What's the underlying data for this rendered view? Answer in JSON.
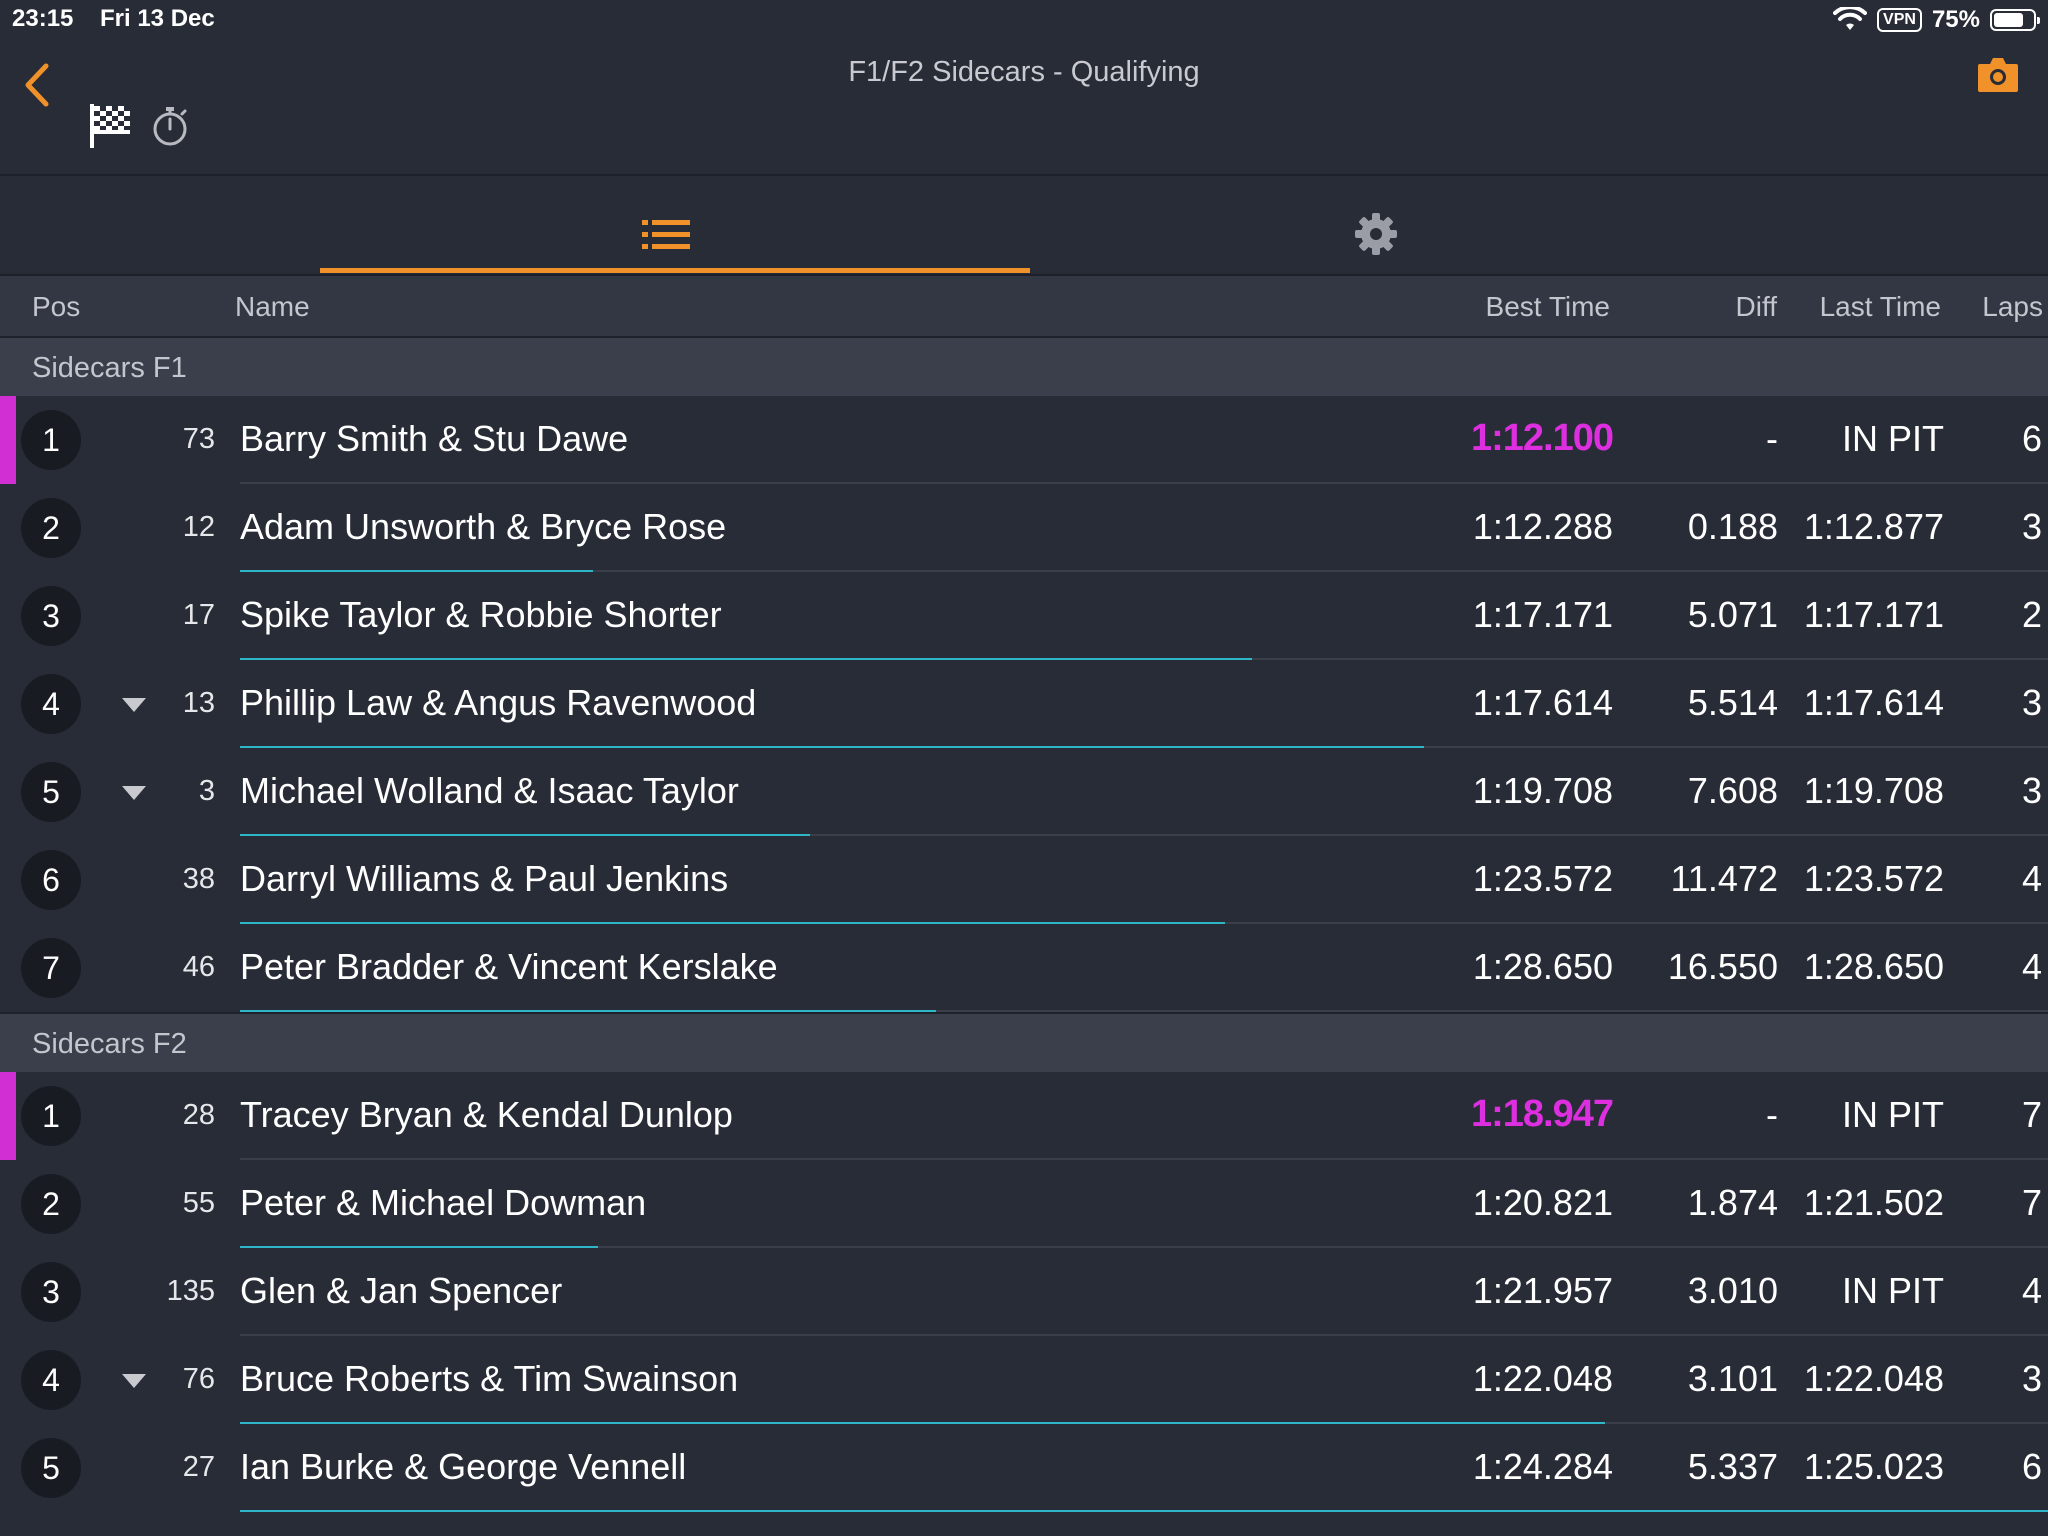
{
  "status_bar": {
    "time": "23:15",
    "date": "Fri 13 Dec",
    "vpn": "VPN",
    "battery": "75%",
    "battery_level": 0.75
  },
  "nav": {
    "title": "F1/F2 Sidecars - Qualifying",
    "back_icon": "chevron-left-icon",
    "camera_icon": "camera-icon",
    "flag_icon": "checkered-flag-icon",
    "stopwatch_icon": "stopwatch-icon"
  },
  "tabs": [
    {
      "name": "list",
      "icon": "list-icon",
      "active": true
    },
    {
      "name": "settings",
      "icon": "gear-icon",
      "active": false
    }
  ],
  "columns": {
    "pos": "Pos",
    "name": "Name",
    "best": "Best Time",
    "diff": "Diff",
    "last": "Last Time",
    "laps": "Laps"
  },
  "colors": {
    "accent": "#f0912a",
    "fastest": "#dd2fe0",
    "progress": "#2fb7c9",
    "background": "#282c36"
  },
  "groups": [
    {
      "title": "Sidecars F1",
      "rows": [
        {
          "pos": "1",
          "num": "73",
          "name": "Barry Smith & Stu Dawe",
          "best": "1:12.100",
          "diff": "-",
          "last": "IN PIT",
          "laps": "6",
          "fastest": true,
          "dropped": false,
          "progress": 0
        },
        {
          "pos": "2",
          "num": "12",
          "name": "Adam Unsworth & Bryce Rose",
          "best": "1:12.288",
          "diff": "0.188",
          "last": "1:12.877",
          "laps": "3",
          "fastest": false,
          "dropped": false,
          "progress": 0.195
        },
        {
          "pos": "3",
          "num": "17",
          "name": "Spike Taylor & Robbie Shorter",
          "best": "1:17.171",
          "diff": "5.071",
          "last": "1:17.171",
          "laps": "2",
          "fastest": false,
          "dropped": false,
          "progress": 0.56
        },
        {
          "pos": "4",
          "num": "13",
          "name": "Phillip Law & Angus Ravenwood",
          "best": "1:17.614",
          "diff": "5.514",
          "last": "1:17.614",
          "laps": "3",
          "fastest": false,
          "dropped": true,
          "progress": 0.655
        },
        {
          "pos": "5",
          "num": "3",
          "name": "Michael Wolland & Isaac Taylor",
          "best": "1:19.708",
          "diff": "7.608",
          "last": "1:19.708",
          "laps": "3",
          "fastest": false,
          "dropped": true,
          "progress": 0.315
        },
        {
          "pos": "6",
          "num": "38",
          "name": "Darryl Williams & Paul Jenkins",
          "best": "1:23.572",
          "diff": "11.472",
          "last": "1:23.572",
          "laps": "4",
          "fastest": false,
          "dropped": false,
          "progress": 0.545
        },
        {
          "pos": "7",
          "num": "46",
          "name": "Peter Bradder & Vincent Kerslake",
          "best": "1:28.650",
          "diff": "16.550",
          "last": "1:28.650",
          "laps": "4",
          "fastest": false,
          "dropped": false,
          "progress": 0.385
        }
      ]
    },
    {
      "title": "Sidecars F2",
      "rows": [
        {
          "pos": "1",
          "num": "28",
          "name": "Tracey Bryan & Kendal Dunlop",
          "best": "1:18.947",
          "diff": "-",
          "last": "IN PIT",
          "laps": "7",
          "fastest": true,
          "dropped": false,
          "progress": 0
        },
        {
          "pos": "2",
          "num": "55",
          "name": "Peter & Michael Dowman",
          "best": "1:20.821",
          "diff": "1.874",
          "last": "1:21.502",
          "laps": "7",
          "fastest": false,
          "dropped": false,
          "progress": 0.198
        },
        {
          "pos": "3",
          "num": "135",
          "name": "Glen & Jan Spencer",
          "best": "1:21.957",
          "diff": "3.010",
          "last": "IN PIT",
          "laps": "4",
          "fastest": false,
          "dropped": false,
          "progress": 0
        },
        {
          "pos": "4",
          "num": "76",
          "name": "Bruce Roberts & Tim Swainson",
          "best": "1:22.048",
          "diff": "3.101",
          "last": "1:22.048",
          "laps": "3",
          "fastest": false,
          "dropped": true,
          "progress": 0.755
        },
        {
          "pos": "5",
          "num": "27",
          "name": "Ian Burke & George Vennell",
          "best": "1:24.284",
          "diff": "5.337",
          "last": "1:25.023",
          "laps": "6",
          "fastest": false,
          "dropped": false,
          "progress": 1.0
        }
      ]
    }
  ]
}
